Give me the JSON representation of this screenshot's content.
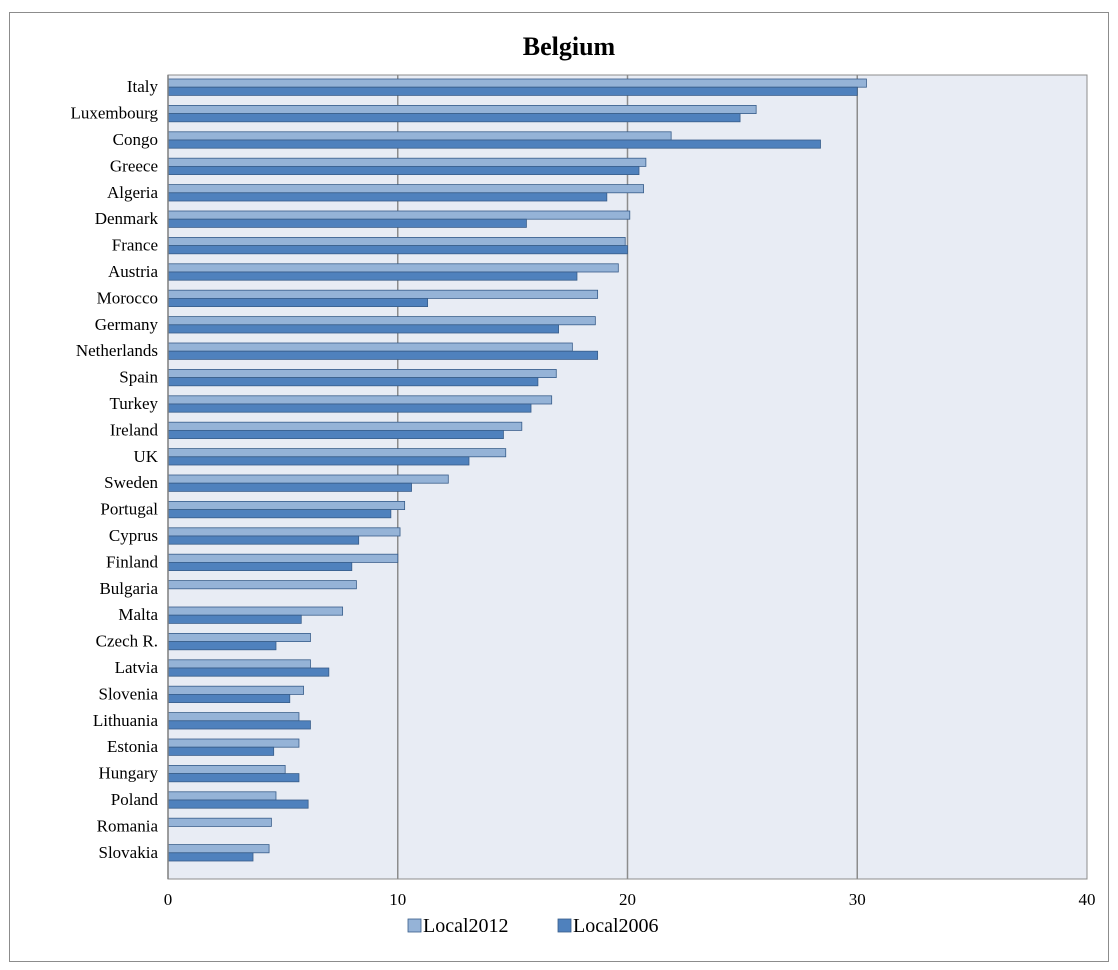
{
  "chart_data": {
    "type": "bar",
    "orientation": "horizontal",
    "title": "Belgium",
    "xlabel": "",
    "ylabel": "",
    "xlim": [
      0,
      40
    ],
    "x_ticks": [
      "0",
      "10",
      "20",
      "30",
      "40"
    ],
    "grid": "vertical",
    "legend_position": "bottom",
    "colors": {
      "plot_background": "#e8ecf4",
      "gridline": "#8c8c8c",
      "series_2012_fill": "#95b3d7",
      "series_2006_fill": "#4f81bd",
      "bar_border": "#385d8a"
    },
    "categories": [
      "Italy",
      "Luxembourg",
      "Congo",
      "Greece",
      "Algeria",
      "Denmark",
      "France",
      "Austria",
      "Morocco",
      "Germany",
      "Netherlands",
      "Spain",
      "Turkey",
      "Ireland",
      "UK",
      "Sweden",
      "Portugal",
      "Cyprus",
      "Finland",
      "Bulgaria",
      "Malta",
      "Czech R.",
      "Latvia",
      "Slovenia",
      "Lithuania",
      "Estonia",
      "Hungary",
      "Poland",
      "Romania",
      "Slovakia"
    ],
    "series": [
      {
        "name": "Local2012",
        "values": [
          30.4,
          25.6,
          21.9,
          20.8,
          20.7,
          20.1,
          19.9,
          19.6,
          18.7,
          18.6,
          17.6,
          16.9,
          16.7,
          15.4,
          14.7,
          12.2,
          10.3,
          10.1,
          10.0,
          8.2,
          7.6,
          6.2,
          6.2,
          5.9,
          5.7,
          5.7,
          5.1,
          4.7,
          4.5,
          4.4
        ]
      },
      {
        "name": "Local2006",
        "values": [
          30.0,
          24.9,
          28.4,
          20.5,
          19.1,
          15.6,
          20.0,
          17.8,
          11.3,
          17.0,
          18.7,
          16.1,
          15.8,
          14.6,
          13.1,
          10.6,
          9.7,
          8.3,
          8.0,
          null,
          5.8,
          4.7,
          7.0,
          5.3,
          6.2,
          4.6,
          5.7,
          6.1,
          null,
          3.7
        ]
      }
    ]
  }
}
